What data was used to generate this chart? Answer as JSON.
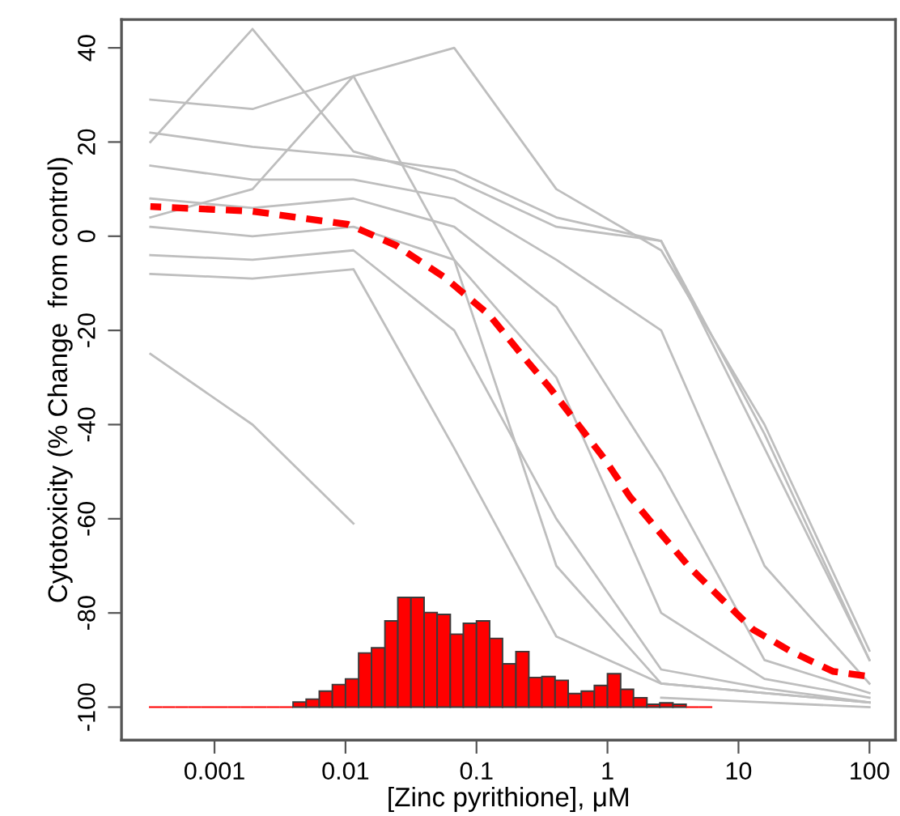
{
  "chart_data": {
    "type": "line",
    "xlabel": "[Zinc pyrithione], μM",
    "ylabel": "Cytotoxicity (% Change  from control)",
    "log": "x",
    "xlim": [
      0.000195,
      158
    ],
    "ylim": [
      -107,
      46
    ],
    "xticks": [
      0.001,
      0.01,
      0.1,
      1,
      10,
      100
    ],
    "yticks": [
      -100,
      -80,
      -60,
      -40,
      -20,
      0,
      20,
      40
    ],
    "x": [
      0.000324,
      0.00195,
      0.0115,
      0.0676,
      0.407,
      2.57,
      15.8,
      100
    ],
    "series": [
      {
        "color": "#bebebe",
        "values": [
          29,
          27,
          34,
          40,
          10,
          -3,
          -40,
          -88
        ]
      },
      {
        "color": "#bebebe",
        "values": [
          20,
          44,
          18,
          12,
          2,
          -1,
          -45,
          -90
        ]
      },
      {
        "color": "#bebebe",
        "values": [
          22,
          19,
          17,
          14,
          4,
          -1,
          -42,
          -90
        ]
      },
      {
        "color": "#bebebe",
        "values": [
          15,
          12,
          12,
          8,
          -5,
          -20,
          -70,
          -95
        ]
      },
      {
        "color": "#bebebe",
        "values": [
          8,
          6,
          8,
          2,
          -15,
          -50,
          -90,
          -97
        ]
      },
      {
        "color": "#bebebe",
        "values": [
          2,
          0,
          2,
          -5,
          -30,
          -80,
          -94,
          -98
        ]
      },
      {
        "color": "#bebebe",
        "values": [
          -4,
          -5,
          -3,
          -20,
          -60,
          -92,
          -96,
          -99
        ]
      },
      {
        "color": "#bebebe",
        "values": [
          -8,
          -9,
          -7,
          -45,
          -85,
          -95,
          -97,
          -99
        ]
      },
      {
        "color": "#bebebe",
        "values": [
          4,
          10,
          34,
          -5,
          -70,
          -95,
          -97,
          -99
        ]
      },
      {
        "color": "#bebebe",
        "values": [
          -25,
          -40,
          -61,
          null,
          null,
          -98,
          -99,
          -100
        ]
      },
      {
        "type": "histogram",
        "color": "#ff0000",
        "bins": [
          0.000316,
          0.000398,
          0.000501,
          0.000631,
          0.000794,
          0.001,
          0.00126,
          0.00158,
          0.002,
          0.00251,
          0.00316,
          0.00398,
          0.00501,
          0.00631,
          0.00794,
          0.01,
          0.0126,
          0.0158,
          0.02,
          0.0251,
          0.0316,
          0.0398,
          0.0501,
          0.0631,
          0.0794,
          0.1,
          0.126,
          0.158,
          0.2,
          0.251,
          0.316,
          0.398,
          0.501,
          0.631,
          0.794,
          1,
          1.26,
          1.58,
          2,
          2.51,
          3.16,
          3.98,
          5.01,
          6.31
        ],
        "values": [
          0,
          0,
          0,
          0,
          0,
          0,
          0,
          0,
          0,
          0,
          0,
          1.1,
          1.7,
          3.4,
          4.8,
          6.0,
          11.5,
          12.6,
          18.3,
          23.3,
          23.3,
          20.1,
          19.7,
          15.5,
          17.8,
          18.3,
          14.6,
          9.2,
          11.8,
          6.3,
          6.5,
          5.7,
          2.9,
          3.4,
          4.6,
          7.1,
          3.8,
          2.0,
          0.6,
          0.9,
          0.6,
          0,
          0
        ],
        "base": [
          -100,
          -100,
          -100,
          -100,
          -100,
          -100,
          -100,
          -100,
          -100,
          -100,
          -100,
          -100,
          -100,
          -100,
          -100,
          -100,
          -100,
          -100,
          -100,
          -100,
          -100,
          -100,
          -100,
          -100,
          -100,
          -100,
          -100,
          -100,
          -100,
          -100,
          -100,
          -100,
          -100,
          -100,
          -100,
          -100,
          -100,
          -100,
          -100,
          -100,
          -100,
          -100,
          -100
        ]
      },
      {
        "type": "line",
        "color": "#ff0000",
        "line_style": "dashed",
        "x": [
          0.000324,
          0.00195,
          0.0105,
          0.0245,
          0.0575,
          0.126,
          0.219,
          0.363,
          0.589,
          0.955,
          1.48,
          2.51,
          4.17,
          7.41,
          12.9,
          24.5,
          52.5,
          100
        ],
        "values": [
          6.3,
          5.3,
          2.5,
          -2.0,
          -8.8,
          -16.8,
          -25.0,
          -32.2,
          -39.8,
          -47.4,
          -55.3,
          -62.9,
          -70.1,
          -77.0,
          -83.5,
          -88.0,
          -92.4,
          -93.5
        ]
      }
    ]
  }
}
